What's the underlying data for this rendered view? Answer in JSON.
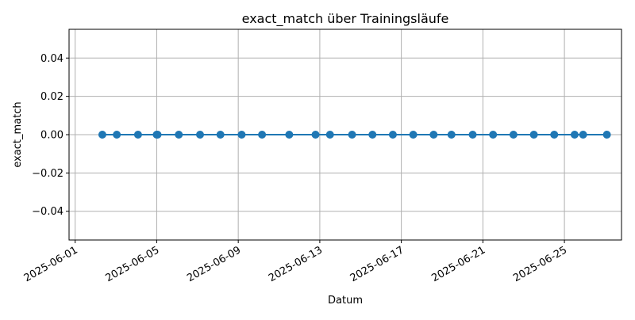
{
  "chart_data": {
    "type": "line",
    "title": "exact_match über Trainingsläufe",
    "xlabel": "Datum",
    "ylabel": "exact_match",
    "x_type": "date",
    "xlim": [
      "2025-05-31T16:48",
      "2025-06-27T19:12"
    ],
    "ylim": [
      -0.055,
      0.055
    ],
    "x_ticks": [
      "2025-06-01",
      "2025-06-05",
      "2025-06-09",
      "2025-06-13",
      "2025-06-17",
      "2025-06-21",
      "2025-06-25"
    ],
    "y_ticks": [
      -0.04,
      -0.02,
      0.0,
      0.02,
      0.04
    ],
    "y_tick_labels": [
      "−0.04",
      "−0.02",
      "0.00",
      "0.02",
      "0.04"
    ],
    "grid": true,
    "series": [
      {
        "color": "#1f77b4",
        "marker": "circle",
        "points": [
          {
            "x": "2025-06-02T08:00",
            "y": 0.0
          },
          {
            "x": "2025-06-03T01:00",
            "y": 0.0
          },
          {
            "x": "2025-06-04T02:00",
            "y": 0.0
          },
          {
            "x": "2025-06-05T00:00",
            "y": 0.0
          },
          {
            "x": "2025-06-05T01:00",
            "y": 0.0
          },
          {
            "x": "2025-06-06T02:00",
            "y": 0.0
          },
          {
            "x": "2025-06-07T03:00",
            "y": 0.0
          },
          {
            "x": "2025-06-08T03:00",
            "y": 0.0
          },
          {
            "x": "2025-06-09T04:00",
            "y": 0.0
          },
          {
            "x": "2025-06-10T04:00",
            "y": 0.0
          },
          {
            "x": "2025-06-11T12:00",
            "y": 0.0
          },
          {
            "x": "2025-06-12T19:00",
            "y": 0.0
          },
          {
            "x": "2025-06-13T12:00",
            "y": 0.0
          },
          {
            "x": "2025-06-14T14:00",
            "y": 0.0
          },
          {
            "x": "2025-06-15T14:00",
            "y": 0.0
          },
          {
            "x": "2025-06-16T14:00",
            "y": 0.0
          },
          {
            "x": "2025-06-17T14:00",
            "y": 0.0
          },
          {
            "x": "2025-06-18T14:00",
            "y": 0.0
          },
          {
            "x": "2025-06-19T11:00",
            "y": 0.0
          },
          {
            "x": "2025-06-20T12:00",
            "y": 0.0
          },
          {
            "x": "2025-06-21T12:00",
            "y": 0.0
          },
          {
            "x": "2025-06-22T12:00",
            "y": 0.0
          },
          {
            "x": "2025-06-23T12:00",
            "y": 0.0
          },
          {
            "x": "2025-06-24T12:00",
            "y": 0.0
          },
          {
            "x": "2025-06-25T12:00",
            "y": 0.0
          },
          {
            "x": "2025-06-25T22:00",
            "y": 0.0
          },
          {
            "x": "2025-06-27T02:00",
            "y": 0.0
          }
        ]
      }
    ]
  }
}
